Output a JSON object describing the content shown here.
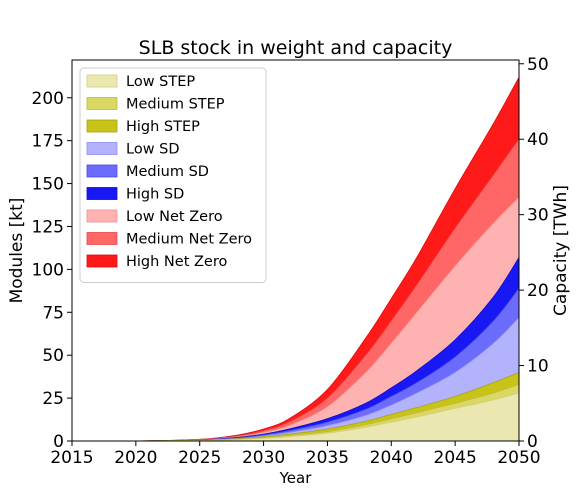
{
  "chart_data": {
    "type": "area",
    "title": "SLB stock in weight and capacity",
    "xlabel": "Year",
    "ylabel": "Modules [kt]",
    "y2label": "Capacity [TWh]",
    "xlim": [
      2015,
      2050
    ],
    "ylim": [
      0,
      222
    ],
    "y2lim": [
      0,
      50.5
    ],
    "xticks": [
      "2015",
      "2020",
      "2025",
      "2030",
      "2035",
      "2040",
      "2045",
      "2050"
    ],
    "yticks": [
      "0",
      "25",
      "50",
      "75",
      "100",
      "125",
      "150",
      "175",
      "200"
    ],
    "y2ticks": [
      "0",
      "10",
      "20",
      "30",
      "40",
      "50"
    ],
    "legend_position": "upper-left",
    "grid": false,
    "x": [
      2015,
      2020,
      2025,
      2028,
      2030,
      2032,
      2035,
      2038,
      2040,
      2042,
      2045,
      2048,
      2050
    ],
    "series": [
      {
        "name": "Low STEP",
        "color": "#eae8b0",
        "edge": "#d2cf7a",
        "values": [
          0,
          0,
          0.3,
          0.8,
          1.5,
          2.5,
          4.5,
          8,
          11,
          14,
          19,
          24,
          28
        ]
      },
      {
        "name": "Medium STEP",
        "color": "#dbd763",
        "edge": "#bfbb3a",
        "values": [
          0,
          0,
          0.4,
          1.0,
          2.0,
          3.2,
          5.5,
          9.5,
          13,
          16.5,
          22,
          28,
          33
        ]
      },
      {
        "name": "High STEP",
        "color": "#c8c319",
        "edge": "#a9a40c",
        "values": [
          0,
          0,
          0.5,
          1.3,
          2.5,
          4.0,
          7,
          11.5,
          15.5,
          19.5,
          26,
          34,
          40
        ]
      },
      {
        "name": "Low SD",
        "color": "#b2b2fd",
        "edge": "#8e8ef0",
        "values": [
          0,
          0,
          0.5,
          1.5,
          3,
          5,
          9,
          15,
          21,
          28,
          40,
          57,
          72
        ]
      },
      {
        "name": "Medium SD",
        "color": "#6c6cfc",
        "edge": "#4a4ae8",
        "values": [
          0,
          0,
          0.6,
          1.8,
          3.5,
          6,
          11,
          18.5,
          26,
          34,
          49,
          70,
          89
        ]
      },
      {
        "name": "High SD",
        "color": "#1818f4",
        "edge": "#0e0ecc",
        "values": [
          0,
          0,
          0.7,
          2.1,
          4,
          7,
          13,
          22,
          31,
          41,
          59,
          84,
          107
        ]
      },
      {
        "name": "Low Net Zero",
        "color": "#feb2b2",
        "edge": "#f29090",
        "values": [
          0,
          0,
          0.8,
          2.5,
          5,
          9,
          20,
          40,
          57,
          75,
          102,
          127,
          142
        ]
      },
      {
        "name": "Medium Net Zero",
        "color": "#ff6666",
        "edge": "#e84848",
        "values": [
          0,
          0,
          0.9,
          3,
          6,
          11,
          25,
          50,
          70,
          91,
          124,
          155,
          176
        ]
      },
      {
        "name": "High Net Zero",
        "color": "#ff1a1a",
        "edge": "#e00c0c",
        "values": [
          0,
          0,
          1.0,
          3.5,
          7,
          13,
          30,
          60,
          83,
          107,
          147,
          185,
          212
        ]
      }
    ]
  }
}
